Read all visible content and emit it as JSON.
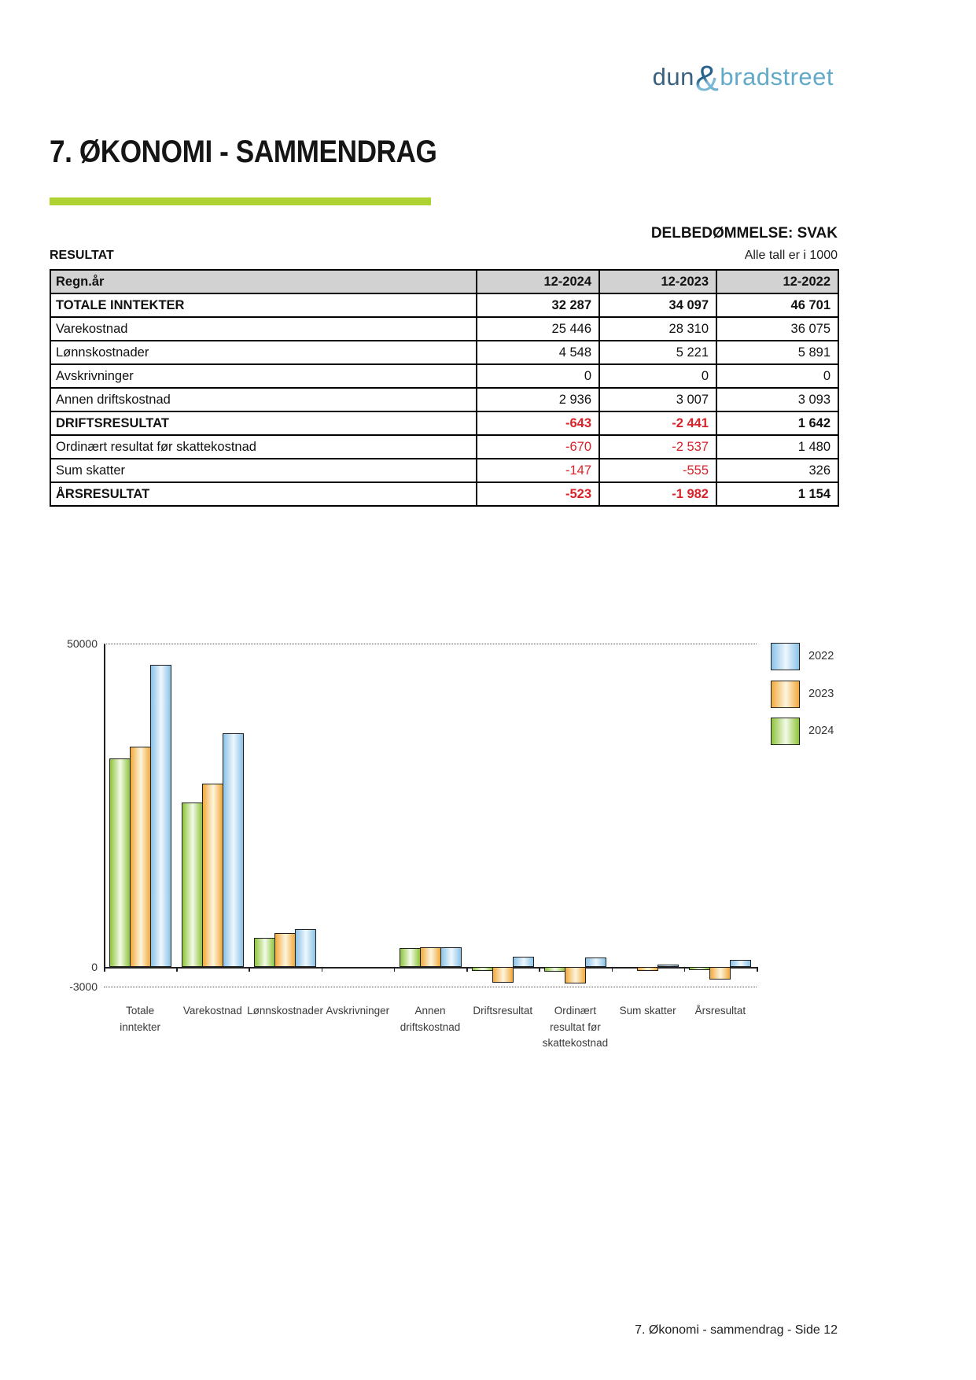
{
  "page": {
    "logo": {
      "dun": "dun",
      "amp": "&",
      "bradstreet": "bradstreet"
    },
    "title": "7. ØKONOMI - SAMMENDRAG",
    "assessment": "DELBEDØMMELSE: SVAK",
    "section_label": "RESULTAT",
    "units_note": "Alle tall er i 1000",
    "footer": "7. Økonomi - sammendrag - Side 12",
    "accent_color": "#afd233",
    "negative_color": "#d8232a"
  },
  "table": {
    "header": [
      "Regn.år",
      "12-2024",
      "12-2023",
      "12-2022"
    ],
    "rows": [
      {
        "label": "TOTALE INNTEKTER",
        "values": [
          "32 287",
          "34 097",
          "46 701"
        ],
        "bold": true
      },
      {
        "label": "Varekostnad",
        "values": [
          "25 446",
          "28 310",
          "36 075"
        ],
        "bold": false
      },
      {
        "label": "Lønnskostnader",
        "values": [
          "4 548",
          "5 221",
          "5 891"
        ],
        "bold": false
      },
      {
        "label": "Avskrivninger",
        "values": [
          "0",
          "0",
          "0"
        ],
        "bold": false
      },
      {
        "label": "Annen driftskostnad",
        "values": [
          "2 936",
          "3 007",
          "3 093"
        ],
        "bold": false
      },
      {
        "label": "DRIFTSRESULTAT",
        "values": [
          "-643",
          "-2 441",
          "1 642"
        ],
        "bold": true
      },
      {
        "label": "Ordinært resultat før skattekostnad",
        "values": [
          "-670",
          "-2 537",
          "1 480"
        ],
        "bold": false
      },
      {
        "label": "Sum skatter",
        "values": [
          "-147",
          "-555",
          "326"
        ],
        "bold": false
      },
      {
        "label": "ÅRSRESULTAT",
        "values": [
          "-523",
          "-1 982",
          "1 154"
        ],
        "bold": true
      }
    ]
  },
  "chart_data": {
    "type": "bar",
    "title": "",
    "xlabel": "",
    "ylabel": "",
    "ylim": [
      -3000,
      50000
    ],
    "grid": "dotted lines at 50000 and -3000 only",
    "legend_position": "top-right",
    "legend": [
      "2022",
      "2023",
      "2024"
    ],
    "yticks": [
      {
        "value": 50000,
        "label": "50000"
      },
      {
        "value": 0,
        "label": "0"
      },
      {
        "value": -3000,
        "label": "-3000"
      }
    ],
    "categories": [
      [
        "Totale",
        "inntekter"
      ],
      [
        "Varekostnad"
      ],
      [
        "Lønnskostnader"
      ],
      [
        "Avskrivninger"
      ],
      [
        "Annen",
        "driftskostnad"
      ],
      [
        "Driftsresultat"
      ],
      [
        "Ordinært",
        "resultat før",
        "skattekostnad"
      ],
      [
        "Sum skatter"
      ],
      [
        "Årsresultat"
      ]
    ],
    "series": [
      {
        "name": "2024",
        "color_edge": "#8fc43c",
        "color_light": "#f3fae8",
        "values": [
          32287,
          25446,
          4548,
          0,
          2936,
          -643,
          -670,
          -147,
          -523
        ]
      },
      {
        "name": "2023",
        "color_edge": "#f2a93a",
        "color_light": "#fdf5df",
        "values": [
          34097,
          28310,
          5221,
          0,
          3007,
          -2441,
          -2537,
          -555,
          -1982
        ]
      },
      {
        "name": "2022",
        "color_edge": "#8ac2e8",
        "color_light": "#eef7fd",
        "values": [
          46701,
          36075,
          5891,
          0,
          3093,
          1642,
          1480,
          326,
          1154
        ]
      }
    ]
  }
}
